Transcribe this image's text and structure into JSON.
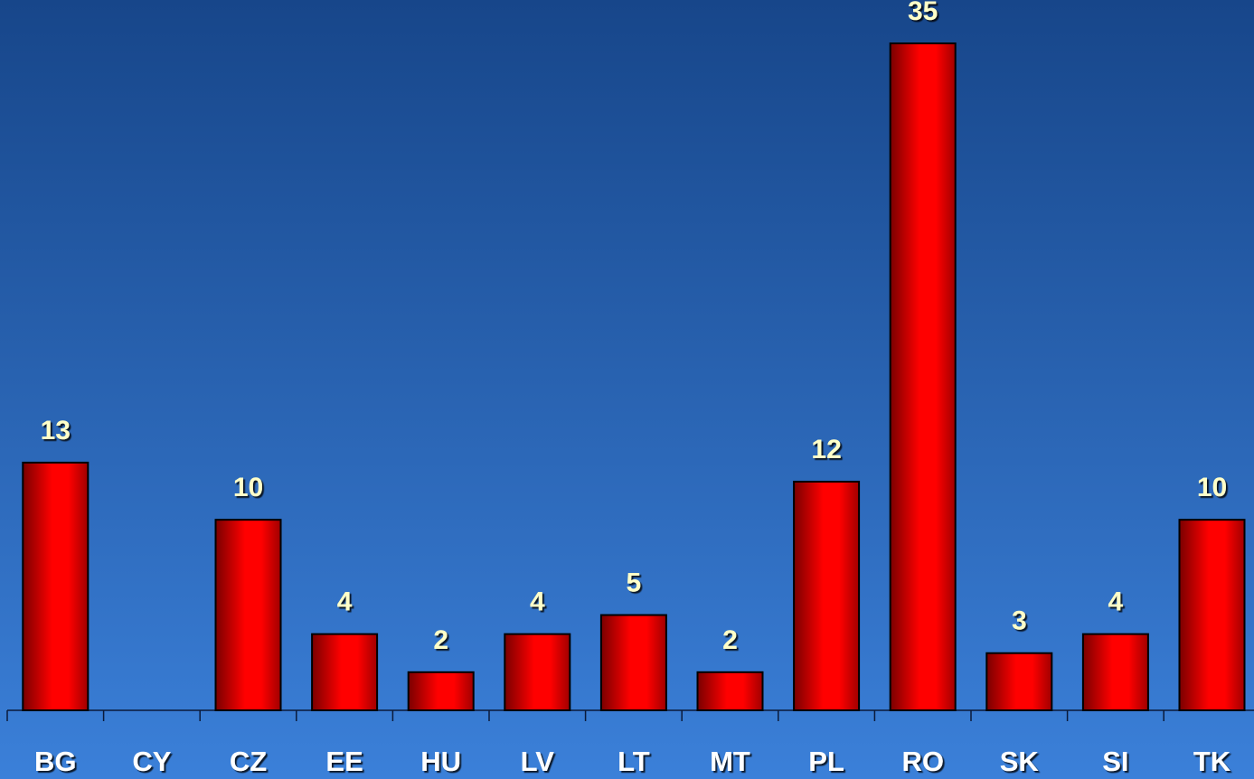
{
  "chart_data": {
    "type": "bar",
    "categories": [
      "BG",
      "CY",
      "CZ",
      "EE",
      "HU",
      "LV",
      "LT",
      "MT",
      "PL",
      "RO",
      "SK",
      "SI",
      "TK"
    ],
    "values": [
      13,
      null,
      10,
      4,
      2,
      4,
      5,
      2,
      12,
      35,
      3,
      4,
      10
    ],
    "color": "#ff0000",
    "ylim": [
      0,
      35
    ]
  }
}
